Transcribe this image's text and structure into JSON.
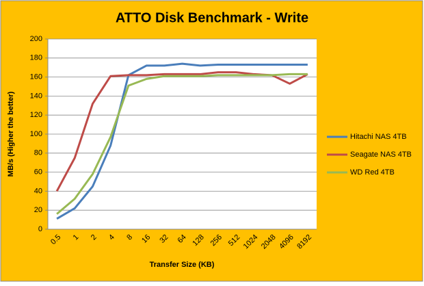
{
  "chart_data": {
    "type": "line",
    "title": "ATTO Disk Benchmark - Write",
    "xlabel": "Transfer Size (KB)",
    "ylabel": "MB/s (Higher the better)",
    "categories": [
      "0.5",
      "1",
      "2",
      "4",
      "8",
      "16",
      "32",
      "64",
      "128",
      "256",
      "512",
      "1024",
      "2048",
      "4096",
      "8192"
    ],
    "series": [
      {
        "name": "Hitachi NAS 4TB",
        "color": "#4a7ebb",
        "values": [
          11,
          22,
          45,
          88,
          162,
          172,
          172,
          174,
          172,
          173,
          173,
          173,
          173,
          173,
          173
        ]
      },
      {
        "name": "Seagate NAS 4TB",
        "color": "#be4b48",
        "values": [
          40,
          75,
          132,
          161,
          162,
          162,
          163,
          163,
          163,
          165,
          165,
          163,
          162,
          153,
          163
        ]
      },
      {
        "name": "WD Red 4TB",
        "color": "#98b954",
        "values": [
          16,
          32,
          58,
          97,
          151,
          158,
          161,
          161,
          161,
          162,
          162,
          162,
          162,
          163,
          163
        ]
      }
    ],
    "ylim": [
      0,
      200
    ],
    "yticks": [
      0,
      20,
      40,
      60,
      80,
      100,
      120,
      140,
      160,
      180,
      200
    ],
    "grid": true,
    "legend": "right"
  }
}
